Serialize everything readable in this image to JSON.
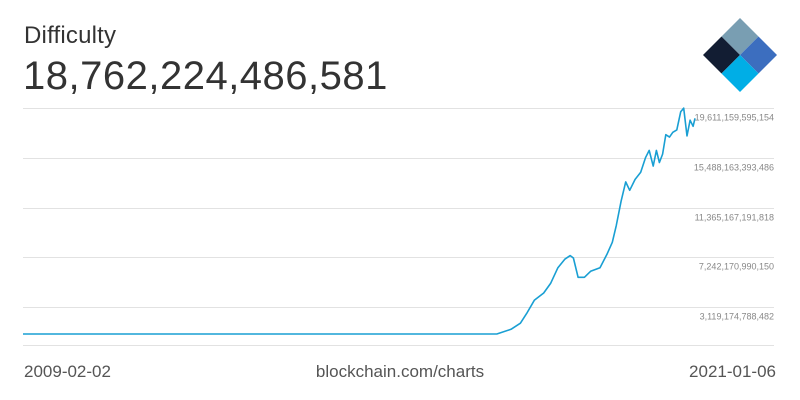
{
  "header": {
    "title": "Difficulty",
    "current_value": "18,762,224,486,581"
  },
  "footer": {
    "start_date": "2009-02-02",
    "source": "blockchain.com/charts",
    "end_date": "2021-01-06"
  },
  "logo": {
    "icon": "blockchain-logo-icon",
    "colors": [
      "#121d33",
      "#3c6ebf",
      "#00aee6",
      "#799eb2",
      "#b1d4e5"
    ]
  },
  "colors": {
    "line": "#199fd3",
    "grid": "#e2e2e2",
    "tick_text": "#888888"
  },
  "chart_data": {
    "type": "line",
    "title": "Difficulty",
    "xlabel": "",
    "ylabel": "",
    "xlim": [
      "2009-02-02",
      "2021-01-06"
    ],
    "ylim": [
      0,
      19611159595154
    ],
    "grid": true,
    "y_ticks": [
      3119174788482,
      7242170990150,
      11365167191818,
      15488163393486,
      19611159595154
    ],
    "y_tick_labels": [
      "3,119,174,788,482",
      "7,242,170,990,150",
      "11,365,167,191,818",
      "15,488,163,393,486",
      "19,611,159,595,154"
    ],
    "x_tick_labels": [
      "2009-02-02",
      "2021-01-06"
    ],
    "series": [
      {
        "x": [
          "2009-02-02",
          "2010-01-01",
          "2011-01-01",
          "2012-01-01",
          "2013-01-01",
          "2014-01-01",
          "2015-01-01",
          "2016-01-01",
          "2016-07-01",
          "2017-01-01",
          "2017-04-01",
          "2017-07-01",
          "2017-10-01",
          "2017-12-01",
          "2018-01-15",
          "2018-03-01",
          "2018-05-01",
          "2018-06-15",
          "2018-08-01",
          "2018-09-15",
          "2018-10-20",
          "2018-11-10",
          "2018-12-10",
          "2019-01-20",
          "2019-03-01",
          "2019-05-01",
          "2019-06-15",
          "2019-07-20",
          "2019-08-15",
          "2019-09-15",
          "2019-10-15",
          "2019-11-10",
          "2019-12-15",
          "2020-01-20",
          "2020-02-20",
          "2020-03-15",
          "2020-04-10",
          "2020-05-01",
          "2020-05-20",
          "2020-06-10",
          "2020-07-01",
          "2020-07-25",
          "2020-08-15",
          "2020-09-10",
          "2020-10-05",
          "2020-10-25",
          "2020-11-15",
          "2020-12-05",
          "2020-12-25",
          "2021-01-06"
        ],
        "values": [
          0,
          0,
          0,
          10000000000,
          25000000000,
          160000000000,
          50000000000,
          160000000000,
          220000000000,
          340000000000,
          500000000000,
          800000000000,
          1300000000000,
          1800000000000,
          2700000000000,
          3700000000000,
          4300000000000,
          5100000000000,
          6400000000000,
          7100000000000,
          7400000000000,
          7200000000000,
          5600000000000,
          5600000000000,
          6100000000000,
          6400000000000,
          7500000000000,
          8500000000000,
          9900000000000,
          11900000000000,
          13500000000000,
          12800000000000,
          13700000000000,
          14300000000000,
          15500000000000,
          16100000000000,
          14800000000000,
          16100000000000,
          15100000000000,
          15800000000000,
          17400000000000,
          17200000000000,
          17600000000000,
          17800000000000,
          19300000000000,
          19600000000000,
          17300000000000,
          18600000000000,
          18100000000000,
          18762224486581
        ]
      }
    ]
  }
}
